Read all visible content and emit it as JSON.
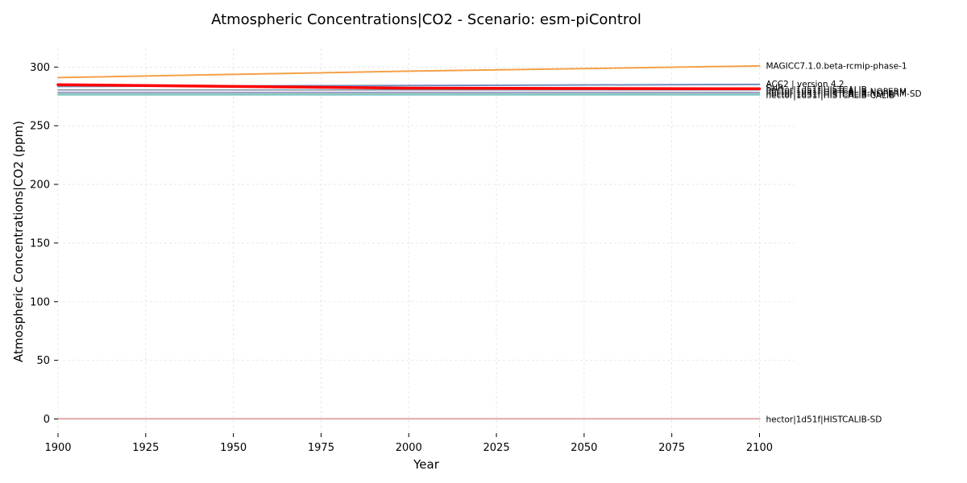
{
  "chart_data": {
    "type": "line",
    "title": "Atmospheric Concentrations|CO2 - Scenario: esm-piControl",
    "xlabel": "Year",
    "ylabel": "Atmospheric Concentrations|CO2 (ppm)",
    "xlim": [
      1900,
      2110
    ],
    "ylim": [
      -12,
      316
    ],
    "xticks": [
      1900,
      1925,
      1950,
      1975,
      2000,
      2025,
      2050,
      2075,
      2100
    ],
    "yticks": [
      0,
      50,
      100,
      150,
      200,
      250,
      300
    ],
    "grid": true,
    "legend": "inline labels at right end of lines",
    "series": [
      {
        "name": "MAGICC7.1.0.beta-rcmip-phase-1",
        "color": "#f5a04a",
        "width": 2,
        "x": [
          1900,
          2000,
          2100
        ],
        "y": [
          291,
          296.5,
          301
        ]
      },
      {
        "name": "ACC2 | version 4.2",
        "color": "#6f8fbf",
        "width": 2,
        "x": [
          1900,
          2000,
          2100
        ],
        "y": [
          283.5,
          284.3,
          285.2
        ]
      },
      {
        "name": "FaIR",
        "color": "#7a8f9f",
        "width": 1.5,
        "x": [
          1900,
          2100
        ],
        "y": [
          280.5,
          280.5
        ]
      },
      {
        "name": "hector|1d51f|HISTCALIB",
        "color": "#a58fc7",
        "width": 1.5,
        "x": [
          1900,
          2100
        ],
        "y": [
          278.5,
          278.5
        ]
      },
      {
        "name": "hector|1d51f|HISTCALIB-NOPERM",
        "color": "#8fb9c9",
        "width": 1.5,
        "x": [
          1900,
          2100
        ],
        "y": [
          277.6,
          277.6
        ]
      },
      {
        "name": "hector|1d51f|HISTCALIB-NOPERM-SD",
        "color": "#9ec9a8",
        "width": 1.5,
        "x": [
          1900,
          2100
        ],
        "y": [
          277.0,
          277.0
        ]
      },
      {
        "name": "hector|1d51f|HISTCALIB-CALIB",
        "color": "#80c7c7",
        "width": 2,
        "x": [
          1900,
          2100
        ],
        "y": [
          276.4,
          276.4
        ]
      },
      {
        "name": "hector|1d51f|HISTCALIB-SD",
        "color": "#e0a8a8",
        "width": 2,
        "x": [
          1900,
          2100
        ],
        "y": [
          0.2,
          0.2
        ]
      },
      {
        "name": "",
        "color": "#ff0000",
        "width": 3.5,
        "x": [
          1900,
          1950,
          2000,
          2100
        ],
        "y": [
          285,
          283.5,
          282,
          281.5
        ]
      }
    ],
    "labels": [
      {
        "text": "MAGICC7.1.0.beta-rcmip-phase-1",
        "y": 301
      },
      {
        "text": "ACC2 | version 4.2",
        "y": 285.5
      },
      {
        "text": "FaIR",
        "y": 282.5
      },
      {
        "text": "hector|1d51f|HISTCALIB",
        "y": 280.7
      },
      {
        "text": "hector|1d51f|HISTCALIB-NOPERM",
        "y": 279.1
      },
      {
        "text": "hector|1d51f|HISTCALIB-NOPERM-SD",
        "y": 277.6
      },
      {
        "text": "hector|1d51f|HISTCALIB-CALIB",
        "y": 276.2
      },
      {
        "text": "hector|1d51f|HISTCALIB-SD",
        "y": 0
      }
    ]
  }
}
